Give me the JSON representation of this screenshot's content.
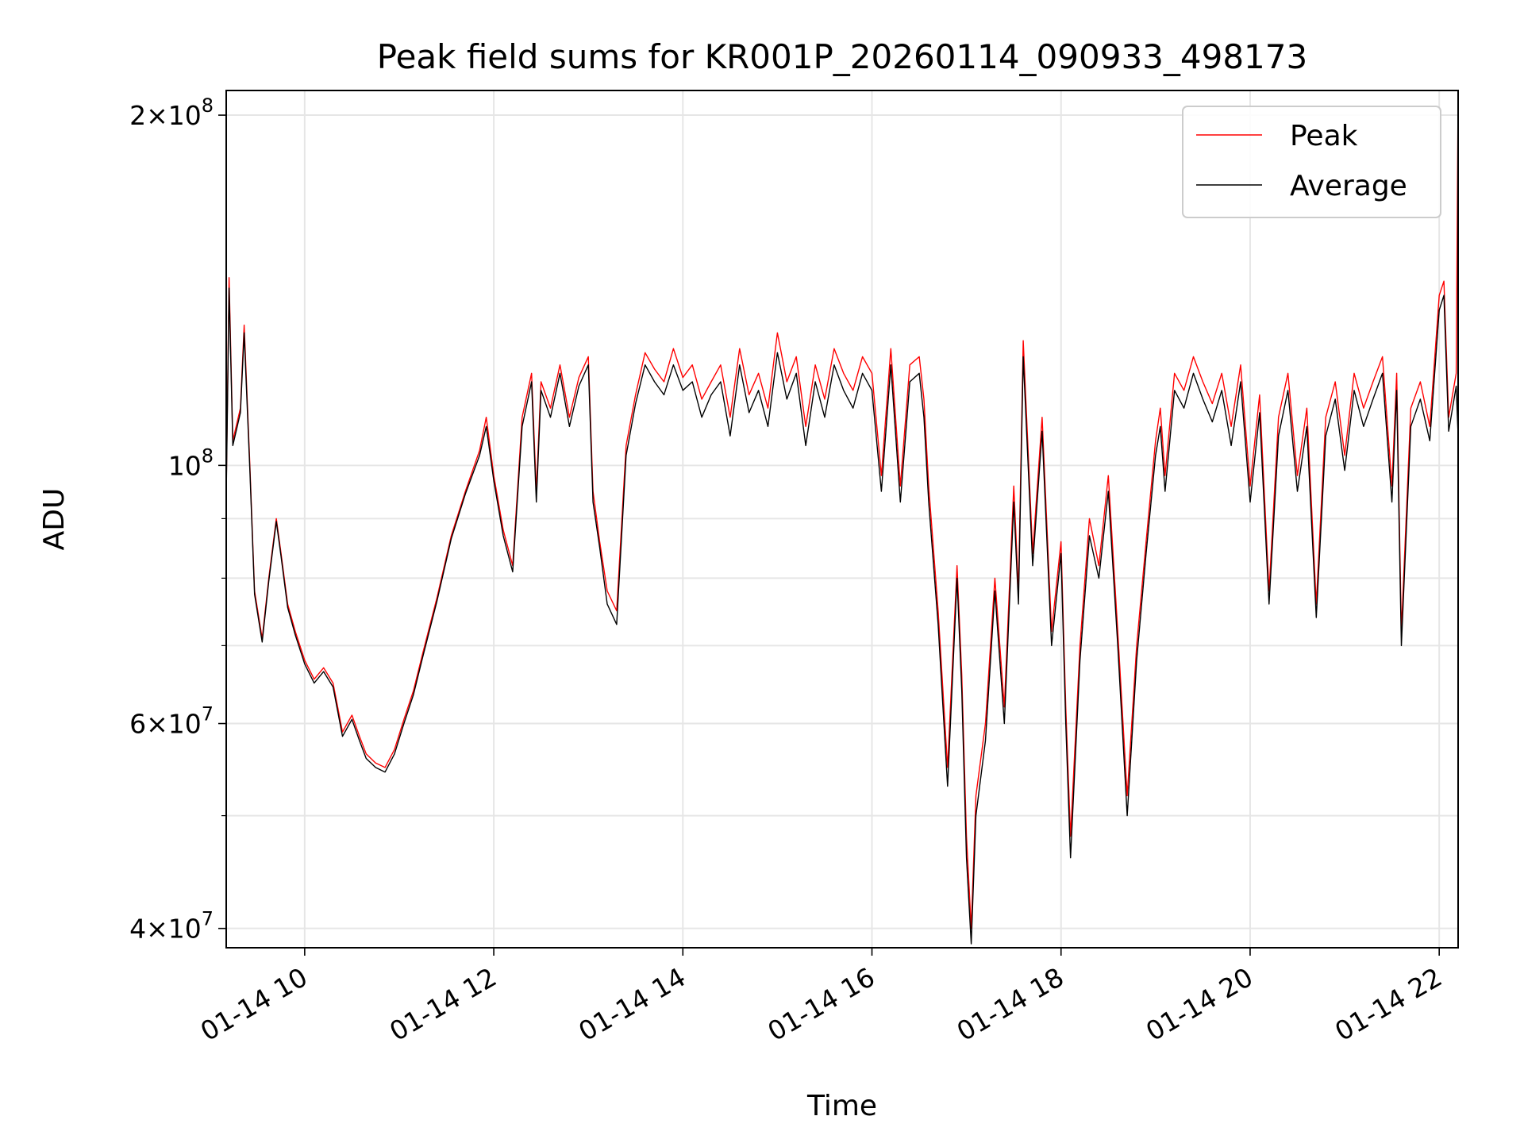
{
  "chart_data": {
    "type": "line",
    "title": "Peak field sums for KR001P_20260114_090933_498173",
    "xlabel": "Time",
    "ylabel": "ADU",
    "yscale": "log",
    "ylim": [
      38500000,
      210000000
    ],
    "xlim": [
      9.17,
      22.2
    ],
    "grid": true,
    "legend_position": "top-right",
    "x_ticks": [
      {
        "value": 10,
        "label": "01-14 10"
      },
      {
        "value": 12,
        "label": "01-14 12"
      },
      {
        "value": 14,
        "label": "01-14 14"
      },
      {
        "value": 16,
        "label": "01-14 16"
      },
      {
        "value": 18,
        "label": "01-14 18"
      },
      {
        "value": 20,
        "label": "01-14 20"
      },
      {
        "value": 22,
        "label": "01-14 22"
      }
    ],
    "y_major_ticks": [
      {
        "value": 40000000,
        "base": "4",
        "exp": "7"
      },
      {
        "value": 60000000,
        "base": "6",
        "exp": "7"
      },
      {
        "value": 100000000,
        "base": "",
        "exp": "8"
      },
      {
        "value": 200000000,
        "base": "2",
        "exp": "8"
      }
    ],
    "y_minor_ticks": [
      50000000,
      70000000,
      80000000,
      90000000
    ],
    "series": [
      {
        "name": "Peak",
        "color": "#ff0000",
        "x": [
          9.17,
          9.2,
          9.24,
          9.32,
          9.36,
          9.42,
          9.47,
          9.55,
          9.62,
          9.7,
          9.75,
          9.82,
          9.9,
          10.0,
          10.1,
          10.2,
          10.3,
          10.4,
          10.5,
          10.58,
          10.65,
          10.75,
          10.85,
          10.95,
          11.05,
          11.15,
          11.25,
          11.4,
          11.55,
          11.7,
          11.85,
          11.92,
          12.0,
          12.1,
          12.2,
          12.3,
          12.4,
          12.45,
          12.5,
          12.6,
          12.7,
          12.8,
          12.9,
          13.0,
          13.05,
          13.12,
          13.2,
          13.3,
          13.4,
          13.5,
          13.6,
          13.7,
          13.8,
          13.9,
          14.0,
          14.1,
          14.2,
          14.3,
          14.4,
          14.5,
          14.6,
          14.7,
          14.8,
          14.9,
          15.0,
          15.1,
          15.2,
          15.3,
          15.4,
          15.5,
          15.6,
          15.7,
          15.8,
          15.9,
          16.0,
          16.1,
          16.2,
          16.3,
          16.4,
          16.5,
          16.55,
          16.6,
          16.7,
          16.8,
          16.9,
          16.95,
          17.0,
          17.05,
          17.1,
          17.2,
          17.3,
          17.4,
          17.5,
          17.55,
          17.6,
          17.7,
          17.8,
          17.9,
          18.0,
          18.05,
          18.1,
          18.2,
          18.3,
          18.4,
          18.5,
          18.6,
          18.7,
          18.8,
          18.9,
          19.0,
          19.05,
          19.1,
          19.2,
          19.3,
          19.4,
          19.5,
          19.6,
          19.7,
          19.8,
          19.9,
          20.0,
          20.1,
          20.2,
          20.3,
          20.4,
          20.5,
          20.6,
          20.7,
          20.8,
          20.9,
          21.0,
          21.1,
          21.2,
          21.3,
          21.4,
          21.5,
          21.55,
          21.6,
          21.7,
          21.8,
          21.9,
          22.0,
          22.05,
          22.1,
          22.18,
          22.2
        ],
        "values": [
          95000000,
          145000000,
          105000000,
          112000000,
          132000000,
          100000000,
          78000000,
          71000000,
          80000000,
          90000000,
          84000000,
          76000000,
          72000000,
          68000000,
          65500000,
          67000000,
          65000000,
          59000000,
          61000000,
          58500000,
          56500000,
          55500000,
          55000000,
          57000000,
          60500000,
          64000000,
          69000000,
          77000000,
          87000000,
          95000000,
          103000000,
          110000000,
          98000000,
          88000000,
          82000000,
          110000000,
          120000000,
          95000000,
          118000000,
          112000000,
          122000000,
          110000000,
          119000000,
          124000000,
          95000000,
          86000000,
          78000000,
          75000000,
          104000000,
          115000000,
          125000000,
          121000000,
          118000000,
          126000000,
          119000000,
          122000000,
          114000000,
          118000000,
          122000000,
          110000000,
          126000000,
          115000000,
          120000000,
          112000000,
          130000000,
          118000000,
          124000000,
          108000000,
          122000000,
          114000000,
          126000000,
          120000000,
          116000000,
          124000000,
          120000000,
          98000000,
          126000000,
          96000000,
          122000000,
          124000000,
          114000000,
          96000000,
          75000000,
          55000000,
          82000000,
          66000000,
          48000000,
          40000000,
          52000000,
          60000000,
          80000000,
          62000000,
          96000000,
          78000000,
          128000000,
          84000000,
          110000000,
          72000000,
          86000000,
          62000000,
          48000000,
          70000000,
          90000000,
          82000000,
          98000000,
          72000000,
          52000000,
          70000000,
          86000000,
          105000000,
          112000000,
          98000000,
          120000000,
          116000000,
          124000000,
          118000000,
          113000000,
          120000000,
          108000000,
          122000000,
          96000000,
          115000000,
          78000000,
          110000000,
          120000000,
          98000000,
          112000000,
          76000000,
          110000000,
          118000000,
          102000000,
          120000000,
          112000000,
          118000000,
          124000000,
          96000000,
          120000000,
          72000000,
          112000000,
          118000000,
          108000000,
          140000000,
          144000000,
          110000000,
          120000000,
          210000000
        ]
      },
      {
        "name": "Average",
        "color": "#000000",
        "x": [
          9.17,
          9.2,
          9.24,
          9.32,
          9.36,
          9.42,
          9.47,
          9.55,
          9.62,
          9.7,
          9.75,
          9.82,
          9.9,
          10.0,
          10.1,
          10.2,
          10.3,
          10.4,
          10.5,
          10.58,
          10.65,
          10.75,
          10.85,
          10.95,
          11.05,
          11.15,
          11.25,
          11.4,
          11.55,
          11.7,
          11.85,
          11.92,
          12.0,
          12.1,
          12.2,
          12.3,
          12.4,
          12.45,
          12.5,
          12.6,
          12.7,
          12.8,
          12.9,
          13.0,
          13.05,
          13.12,
          13.2,
          13.3,
          13.4,
          13.5,
          13.6,
          13.7,
          13.8,
          13.9,
          14.0,
          14.1,
          14.2,
          14.3,
          14.4,
          14.5,
          14.6,
          14.7,
          14.8,
          14.9,
          15.0,
          15.1,
          15.2,
          15.3,
          15.4,
          15.5,
          15.6,
          15.7,
          15.8,
          15.9,
          16.0,
          16.1,
          16.2,
          16.3,
          16.4,
          16.5,
          16.55,
          16.6,
          16.7,
          16.8,
          16.9,
          16.95,
          17.0,
          17.05,
          17.1,
          17.2,
          17.3,
          17.4,
          17.5,
          17.55,
          17.6,
          17.7,
          17.8,
          17.9,
          18.0,
          18.05,
          18.1,
          18.2,
          18.3,
          18.4,
          18.5,
          18.6,
          18.7,
          18.8,
          18.9,
          19.0,
          19.05,
          19.1,
          19.2,
          19.3,
          19.4,
          19.5,
          19.6,
          19.7,
          19.8,
          19.9,
          20.0,
          20.1,
          20.2,
          20.3,
          20.4,
          20.5,
          20.6,
          20.7,
          20.8,
          20.9,
          21.0,
          21.1,
          21.2,
          21.3,
          21.4,
          21.5,
          21.55,
          21.6,
          21.7,
          21.8,
          21.9,
          22.0,
          22.05,
          22.1,
          22.18,
          22.2
        ],
        "values": [
          94000000,
          142000000,
          104000000,
          111000000,
          130000000,
          99000000,
          77500000,
          70500000,
          79500000,
          89500000,
          83500000,
          75500000,
          71500000,
          67500000,
          65000000,
          66500000,
          64500000,
          58500000,
          60500000,
          58000000,
          56000000,
          55000000,
          54500000,
          56500000,
          60000000,
          63500000,
          68500000,
          76500000,
          86500000,
          94500000,
          102000000,
          108000000,
          97000000,
          87000000,
          81000000,
          108000000,
          118000000,
          93000000,
          116000000,
          110000000,
          120000000,
          108000000,
          117000000,
          122000000,
          93000000,
          85000000,
          76000000,
          73000000,
          102000000,
          113000000,
          122000000,
          118000000,
          115000000,
          122000000,
          116000000,
          118000000,
          110000000,
          115000000,
          118000000,
          106000000,
          122000000,
          111000000,
          116000000,
          108000000,
          125000000,
          114000000,
          120000000,
          104000000,
          118000000,
          110000000,
          122000000,
          116000000,
          112000000,
          120000000,
          116000000,
          95000000,
          122000000,
          93000000,
          118000000,
          120000000,
          110000000,
          93000000,
          73000000,
          53000000,
          80000000,
          64000000,
          46000000,
          38800000,
          50000000,
          58000000,
          78000000,
          60000000,
          93000000,
          76000000,
          124000000,
          82000000,
          107000000,
          70000000,
          84000000,
          60000000,
          46000000,
          68000000,
          87000000,
          80000000,
          95000000,
          70000000,
          50000000,
          68000000,
          84000000,
          102000000,
          108000000,
          95000000,
          116000000,
          112000000,
          120000000,
          114000000,
          109000000,
          116000000,
          104000000,
          118000000,
          93000000,
          111000000,
          76000000,
          106000000,
          116000000,
          95000000,
          108000000,
          74000000,
          106000000,
          114000000,
          99000000,
          116000000,
          108000000,
          114000000,
          120000000,
          93000000,
          116000000,
          70000000,
          108000000,
          114000000,
          105000000,
          136000000,
          140000000,
          107000000,
          117000000,
          106000000
        ]
      }
    ]
  }
}
